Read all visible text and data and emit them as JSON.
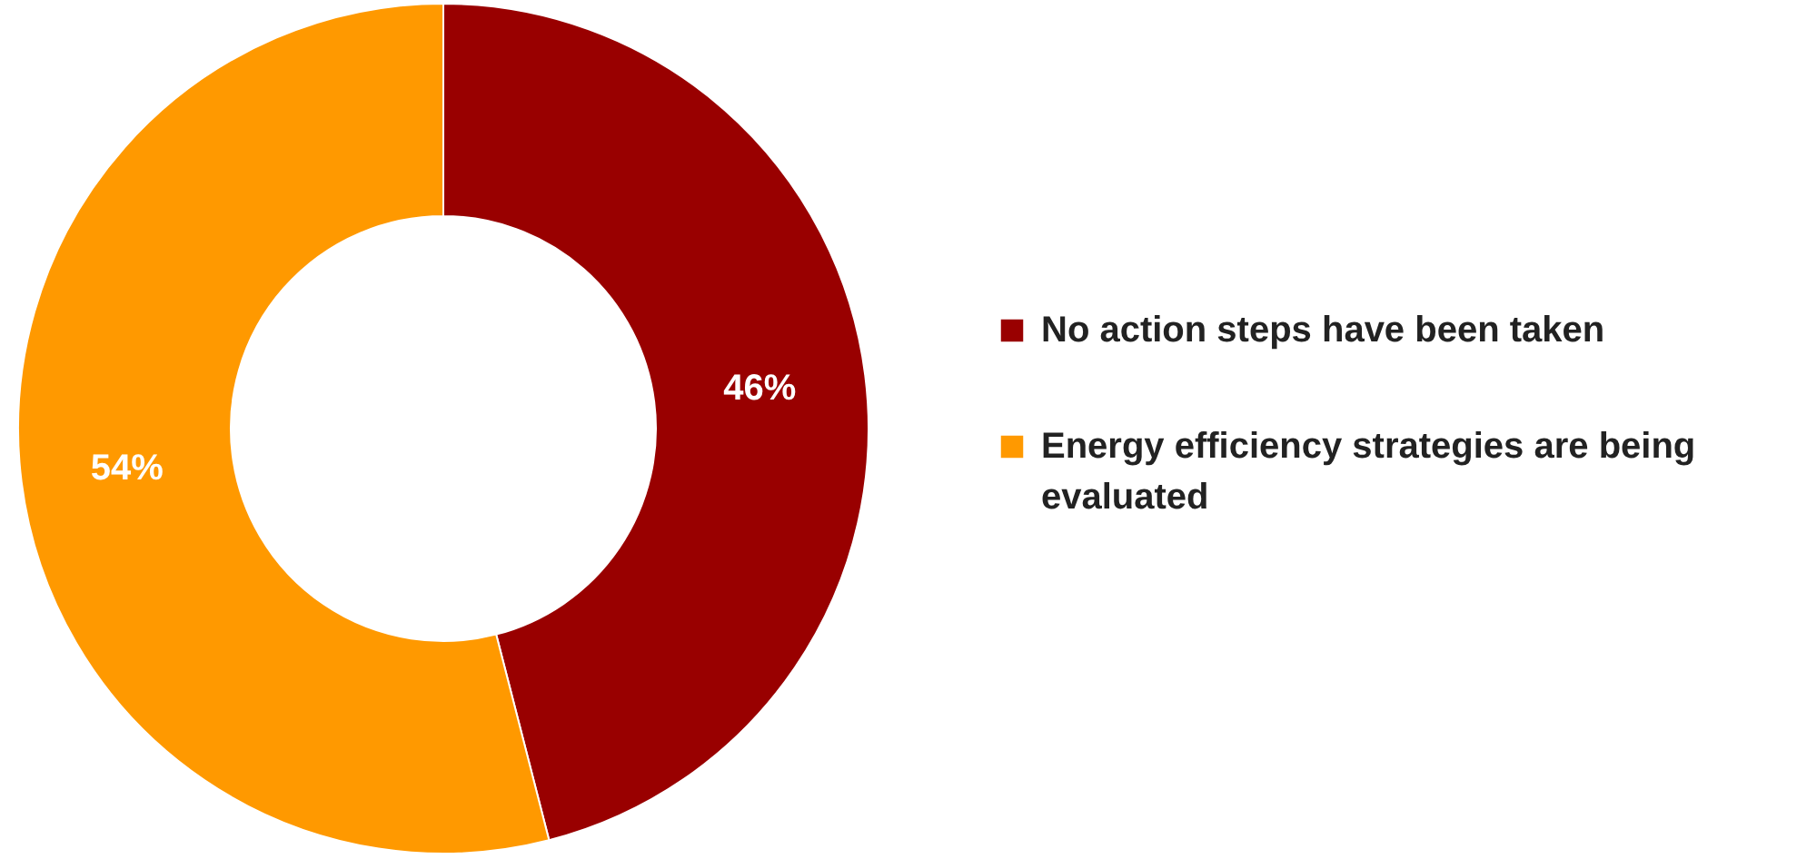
{
  "chart_data": {
    "type": "donut",
    "categories": [
      "No action steps have been taken",
      "Energy efficiency strategies are being evaluated"
    ],
    "values": [
      46,
      54
    ],
    "colors": [
      "#990000",
      "#ff9900"
    ],
    "value_labels": [
      "46%",
      "54%"
    ],
    "legend": "right"
  }
}
